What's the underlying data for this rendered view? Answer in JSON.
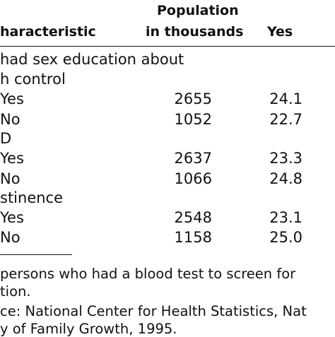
{
  "header": {
    "characteristic": "haracteristic",
    "population_line1": "Population",
    "population_line2": "in thousands",
    "yes": "Yes"
  },
  "rows": [
    {
      "label": "had sex education about"
    },
    {
      "label": "h control"
    },
    {
      "label": "Yes",
      "population": "2655",
      "yes": "24.1"
    },
    {
      "label": "No",
      "population": "1052",
      "yes": "22.7"
    },
    {
      "label": "D"
    },
    {
      "label": "Yes",
      "population": "2637",
      "yes": "23.3"
    },
    {
      "label": "No",
      "population": "1066",
      "yes": "24.8"
    },
    {
      "label": "stinence"
    },
    {
      "label": "Yes",
      "population": "2548",
      "yes": "23.1"
    },
    {
      "label": "No",
      "population": "1158",
      "yes": "25.0"
    }
  ],
  "notes": {
    "note_line1": "persons who had a blood test to screen for",
    "note_line2": "tion.",
    "source_line1": "ce: National Center for Health Statistics, Nat",
    "source_line2": "y of Family Growth, 1995."
  }
}
